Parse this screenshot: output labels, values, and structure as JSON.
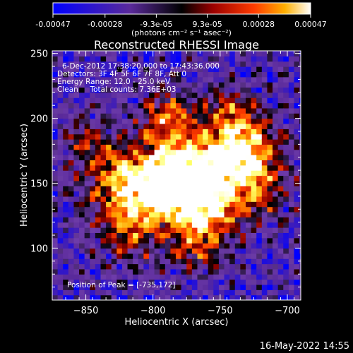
{
  "colorbar": {
    "tick_labels": [
      "-0.00047",
      "-0.00028",
      "-9.3e-05",
      "9.3e-05",
      "0.00028",
      "0.00047"
    ],
    "tick_values": [
      -0.00047,
      -0.00028,
      -9.3e-05,
      9.3e-05,
      0.00028,
      0.00047
    ],
    "range": [
      -0.00047,
      0.00047
    ],
    "units": "(photons cm⁻² s⁻¹ asec⁻²)"
  },
  "chart_data": {
    "type": "heatmap",
    "title": "Reconstructed RHESSI Image",
    "xlabel": "Heliocentric X (arcsec)",
    "ylabel": "Heliocentric Y (arcsec)",
    "xlim": [
      -875,
      -690
    ],
    "ylim": [
      60,
      252
    ],
    "x_ticks": [
      -850,
      -800,
      -750,
      -700
    ],
    "y_ticks": [
      100,
      150,
      200,
      250
    ],
    "x_tick_labels": [
      "−850",
      "−800",
      "−750",
      "−700"
    ],
    "y_tick_labels": [
      "100",
      "150",
      "200",
      "250"
    ],
    "colormap": [
      "#0000ff",
      "#5a2a9a",
      "#000000",
      "#8b0000",
      "#ff3b00",
      "#ffa500",
      "#ffff66",
      "#ffffff"
    ],
    "peak": [
      -735,
      172
    ],
    "annotations": [
      "6-Dec-2012 17:38:20.000 to 17:43:36.000",
      "Detectors: 3F 4F 5F 6F 7F 8F, Att 0",
      "Energy Range: 12.0 - 25.0 keV",
      "Clean     Total counts: 7.36E+03"
    ],
    "peak_label": "Position of Peak = [-735,172]"
  },
  "timestamp": "16-May-2022 14:55"
}
